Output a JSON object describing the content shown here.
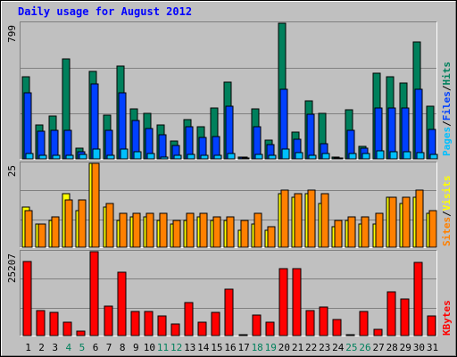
{
  "title": "Daily usage for August 2012",
  "colors": {
    "frame_bg": "#c0c0c0",
    "title": "#0000ff",
    "hits": "#00805c",
    "files": "#0040ff",
    "pages": "#00c0ff",
    "visits": "#ffff00",
    "sites": "#ff8000",
    "kbytes": "#ff0000",
    "weekend_label": "#00805c",
    "weekday_label": "#000000",
    "slash": "#000000"
  },
  "legend_top": [
    {
      "text": "Pages",
      "color": "#00c0ff"
    },
    {
      "text": "/",
      "color": "#000000"
    },
    {
      "text": "Files",
      "color": "#0040ff"
    },
    {
      "text": "/",
      "color": "#000000"
    },
    {
      "text": "Hits",
      "color": "#00805c"
    }
  ],
  "legend_mid": [
    {
      "text": "Sites",
      "color": "#ff8000"
    },
    {
      "text": "/",
      "color": "#000000"
    },
    {
      "text": "Visits",
      "color": "#ffff00"
    }
  ],
  "legend_bot": [
    {
      "text": "KBytes",
      "color": "#ff0000"
    }
  ],
  "chart_data": {
    "type": "bar",
    "title": "Daily usage for August 2012",
    "categories": [
      "1",
      "2",
      "3",
      "4",
      "5",
      "6",
      "7",
      "8",
      "9",
      "10",
      "11",
      "12",
      "13",
      "14",
      "15",
      "16",
      "17",
      "18",
      "19",
      "20",
      "21",
      "22",
      "23",
      "24",
      "25",
      "26",
      "27",
      "28",
      "29",
      "30",
      "31"
    ],
    "weekend_days": [
      "4",
      "5",
      "11",
      "12",
      "18",
      "19",
      "25",
      "26"
    ],
    "panels": [
      {
        "name": "top",
        "ymax_label": "799",
        "ylim": [
          0,
          799
        ],
        "series": [
          {
            "name": "Hits",
            "values": [
              482,
              198,
              250,
              588,
              64,
              514,
              256,
              549,
              292,
              268,
              201,
              106,
              230,
              187,
              297,
              451,
              13,
              292,
              109,
              799,
              156,
              342,
              268,
              13,
              288,
              75,
              504,
              484,
              449,
              689,
              310
            ]
          },
          {
            "name": "Files",
            "values": [
              389,
              164,
              169,
              167,
              43,
              440,
              168,
              388,
              228,
              181,
              143,
              78,
              187,
              128,
              133,
              311,
              10,
              187,
              82,
              411,
              118,
              264,
              90,
              7,
              168,
              61,
              300,
              298,
              301,
              410,
              173
            ]
          },
          {
            "name": "Pages",
            "values": [
              34,
              21,
              23,
              19,
              25,
              56,
              19,
              58,
              42,
              31,
              13,
              22,
              27,
              23,
              23,
              32,
              2,
              28,
              21,
              60,
              37,
              22,
              31,
              3,
              34,
              29,
              48,
              40,
              40,
              38,
              24
            ]
          }
        ]
      },
      {
        "name": "middle",
        "ymax_label": "25",
        "ylim": [
          0,
          25
        ],
        "series": [
          {
            "name": "Visits",
            "values": [
              12,
              7,
              8,
              16,
              11,
              25,
              12,
              8,
              9,
              9,
              8,
              7,
              8,
              9,
              8,
              8,
              5,
              7,
              5,
              16,
              15,
              16,
              13,
              6,
              8,
              7,
              7,
              15,
              13,
              15,
              10
            ]
          },
          {
            "name": "Sites",
            "values": [
              11,
              7,
              9,
              14,
              14,
              25,
              13,
              10,
              10,
              10,
              10,
              8,
              10,
              10,
              9,
              9,
              8,
              10,
              6,
              17,
              16,
              17,
              16,
              8,
              9,
              9,
              10,
              15,
              15,
              17,
              11
            ]
          }
        ]
      },
      {
        "name": "bottom",
        "ymax_label": "25207",
        "ylim": [
          0,
          25207
        ],
        "series": [
          {
            "name": "KBytes",
            "values": [
              22220,
              7570,
              6880,
              4050,
              1380,
              25207,
              8950,
              18990,
              7250,
              7320,
              6030,
              3520,
              9870,
              3900,
              6850,
              13910,
              300,
              6270,
              4100,
              20140,
              20120,
              7490,
              8630,
              4760,
              300,
              7250,
              1890,
              13200,
              10870,
              22080,
              5820
            ]
          }
        ]
      }
    ],
    "legend": "right-vertical",
    "grid": true
  }
}
